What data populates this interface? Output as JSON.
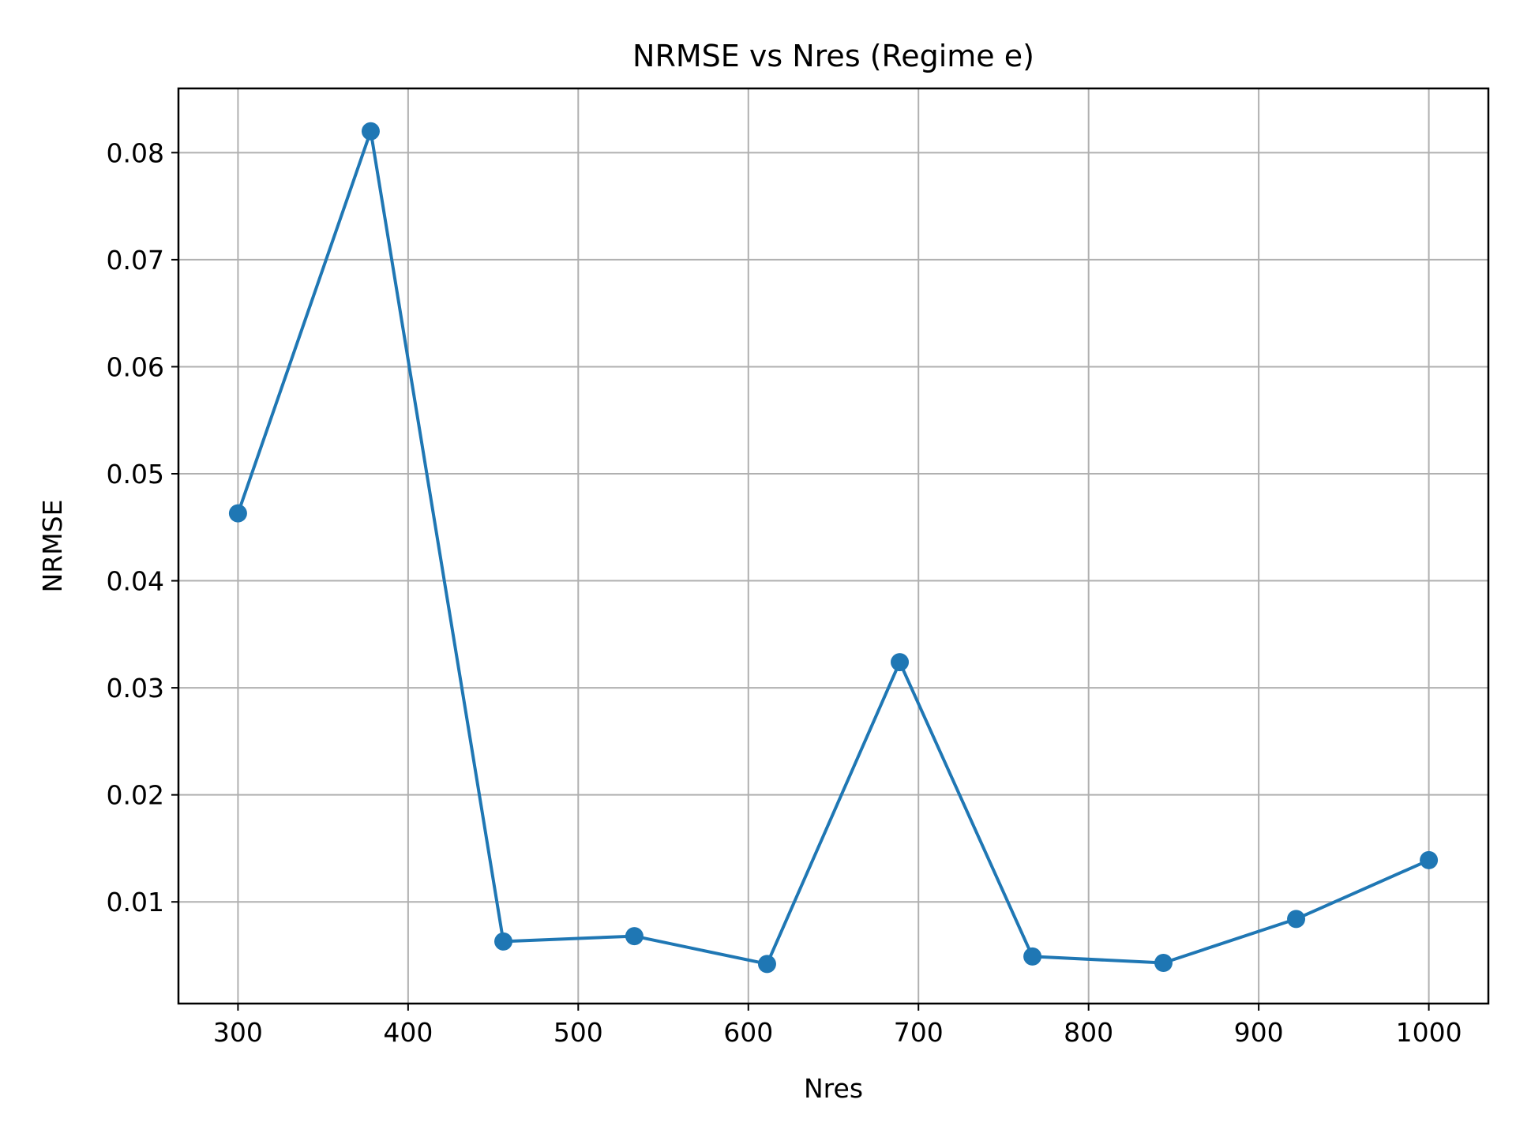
{
  "chart_data": {
    "type": "line",
    "title": "NRMSE vs Nres (Regime e)",
    "xlabel": "Nres",
    "ylabel": "NRMSE",
    "xlim": [
      265,
      1035
    ],
    "ylim": [
      0.0005,
      0.086
    ],
    "xticks": [
      300,
      400,
      500,
      600,
      700,
      800,
      900,
      1000
    ],
    "xtick_labels": [
      "300",
      "400",
      "500",
      "600",
      "700",
      "800",
      "900",
      "1000"
    ],
    "yticks": [
      0.01,
      0.02,
      0.03,
      0.04,
      0.05,
      0.06,
      0.07,
      0.08
    ],
    "ytick_labels": [
      "0.01",
      "0.02",
      "0.03",
      "0.04",
      "0.05",
      "0.06",
      "0.07",
      "0.08"
    ],
    "grid": true,
    "series": [
      {
        "color": "#1f77b4",
        "marker": "circle",
        "x": [
          300,
          378,
          456,
          533,
          611,
          689,
          767,
          844,
          922,
          1000
        ],
        "y": [
          0.0463,
          0.082,
          0.0063,
          0.0068,
          0.0042,
          0.0324,
          0.0049,
          0.0043,
          0.0084,
          0.0139
        ]
      }
    ]
  }
}
